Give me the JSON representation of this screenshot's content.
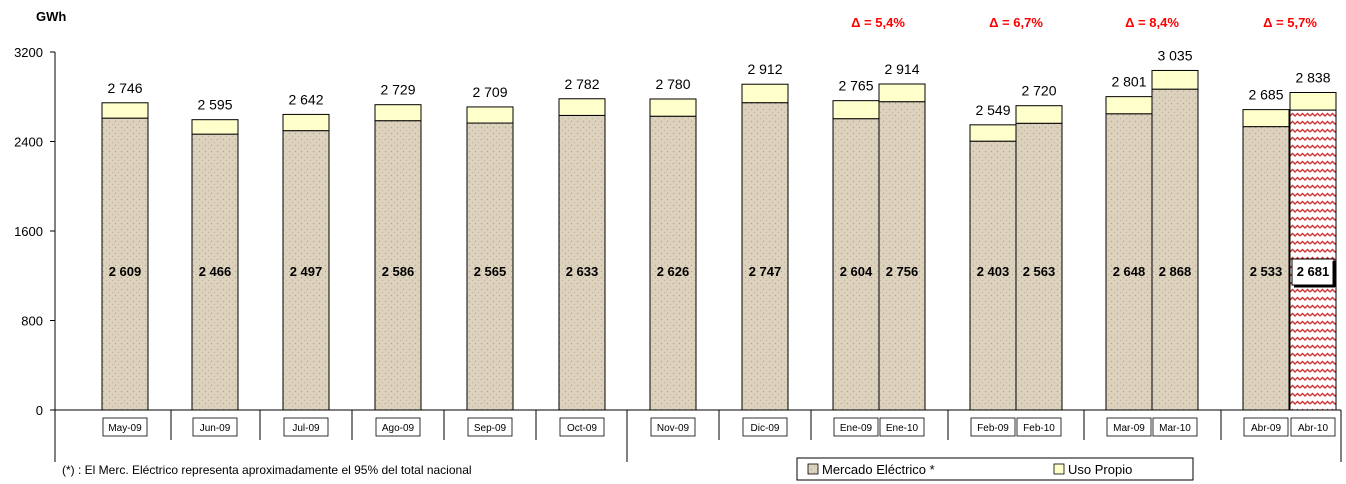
{
  "chart_data": {
    "type": "bar",
    "stacked": true,
    "ylabel": "GWh",
    "ylim": [
      0,
      3200
    ],
    "yticks": [
      "0",
      "800",
      "1600",
      "2400",
      "3200"
    ],
    "categories": [
      "May-09",
      "Jun-09",
      "Jul-09",
      "Ago-09",
      "Sep-09",
      "Oct-09",
      "Nov-09",
      "Dic-09",
      "Ene-09",
      "Ene-10",
      "Feb-09",
      "Feb-10",
      "Mar-09",
      "Mar-10",
      "Abr-09",
      "Abr-10"
    ],
    "series": [
      {
        "name": "Mercado Eléctrico *",
        "values": [
          2609,
          2466,
          2497,
          2586,
          2565,
          2633,
          2626,
          2747,
          2604,
          2756,
          2403,
          2563,
          2648,
          2868,
          2533,
          2681
        ]
      },
      {
        "name": "Uso Propio",
        "values": [
          137,
          129,
          145,
          143,
          144,
          149,
          154,
          165,
          161,
          158,
          146,
          157,
          153,
          167,
          152,
          157
        ]
      }
    ],
    "segment_labels": [
      "2 609",
      "2 466",
      "2 497",
      "2 586",
      "2 565",
      "2 633",
      "2 626",
      "2 747",
      "2 604",
      "2 756",
      "2 403",
      "2 563",
      "2 648",
      "2 868",
      "2 533",
      "2 681"
    ],
    "total_labels": [
      "2 746",
      "2 595",
      "2 642",
      "2 729",
      "2 709",
      "2 782",
      "2 780",
      "2 912",
      "2 765",
      "2 914",
      "2 549",
      "2 720",
      "2 801",
      "3 035",
      "2 685",
      "2 838"
    ],
    "annotations": [
      "Δ = 5,4%",
      "Δ = 6,7%",
      "Δ = 8,4%",
      "Δ = 5,7%"
    ],
    "grid": false,
    "legend_position": "bottom-right",
    "note": "(*) : El Merc. Eléctrico representa aproximadamente el 95% del total nacional",
    "colors": {
      "mercado": "#ddd2bd",
      "uso": "#ffffcc",
      "delta": "#ff0000",
      "highlight": "#cc3333"
    }
  }
}
